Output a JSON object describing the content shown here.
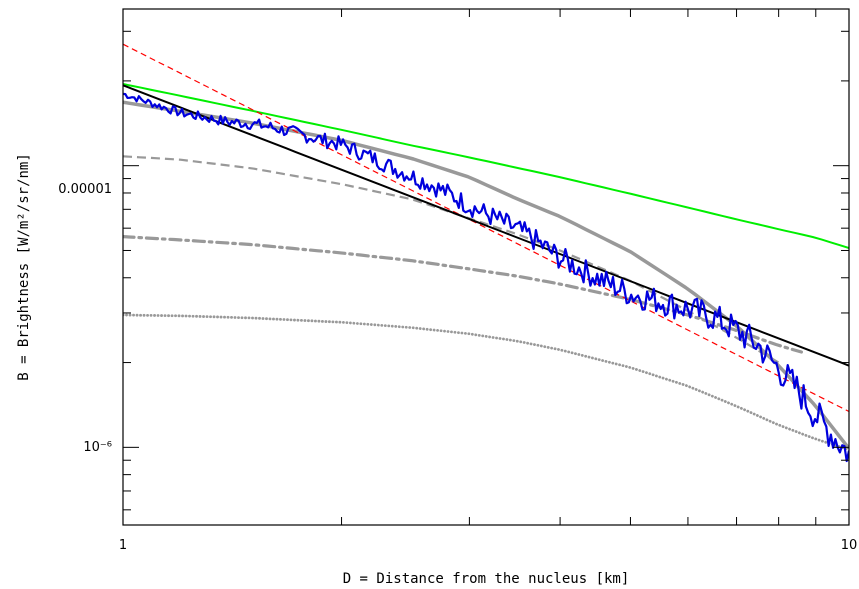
{
  "chart_data": {
    "type": "line",
    "title": "",
    "xlabel": "D = Distance from the nucleus [km]",
    "ylabel": "B = Brightness [W/m²/sr/nm]",
    "xscale": "log",
    "yscale": "log",
    "xlim": [
      1,
      10
    ],
    "ylim": [
      5.3e-07,
      3.6e-05
    ],
    "grid": false,
    "x_tick_labels": [
      "1",
      "10"
    ],
    "y_tick_labels": [
      "0.00001",
      "10⁻⁶"
    ],
    "series": [
      {
        "style": "solid",
        "color": "#00ee00",
        "x": [
          1,
          1.2,
          1.5,
          2,
          2.5,
          3,
          4,
          5,
          6,
          7,
          8,
          9,
          10
        ],
        "y": [
          1.95e-05,
          1.77e-05,
          1.57e-05,
          1.34e-05,
          1.18e-05,
          1.07e-05,
          9.1e-06,
          7.95e-06,
          7.1e-06,
          6.45e-06,
          5.95e-06,
          5.55e-06,
          5.1e-06
        ]
      },
      {
        "style": "dashed",
        "color": "#ff0000",
        "x": [
          1,
          10
        ],
        "y": [
          2.7e-05,
          1.34e-06
        ]
      },
      {
        "style": "solid",
        "color": "#000000",
        "x": [
          1,
          10
        ],
        "y": [
          1.93e-05,
          1.95e-06
        ]
      },
      {
        "style": "solid",
        "color": "#0000dd",
        "noisy": true,
        "x": [
          1,
          1.1,
          1.2,
          1.3,
          1.4,
          1.5,
          1.6,
          1.7,
          1.8,
          2,
          2.2,
          2.4,
          2.6,
          2.8,
          3,
          3.3,
          3.6,
          4,
          4.5,
          5,
          5.5,
          6,
          6.5,
          7,
          7.5,
          8,
          8.5,
          9,
          9.5,
          10
        ],
        "y": [
          1.8e-05,
          1.66e-05,
          1.54e-05,
          1.48e-05,
          1.43e-05,
          1.41e-05,
          1.37e-05,
          1.32e-05,
          1.27e-05,
          1.19e-05,
          1.07e-05,
          9.6e-06,
          8.8e-06,
          8e-06,
          7.2e-06,
          6.4e-06,
          5.7e-06,
          4.7e-06,
          4e-06,
          3.5e-06,
          3.3e-06,
          3.1e-06,
          2.9e-06,
          2.6e-06,
          2.3e-06,
          1.9e-06,
          1.6e-06,
          1.3e-06,
          1.1e-06,
          9.5e-07
        ]
      },
      {
        "style": "thick",
        "color": "#999999",
        "x": [
          1,
          1.2,
          1.5,
          2,
          2.5,
          3,
          3.5,
          4,
          5,
          6,
          7,
          8,
          9,
          10
        ],
        "y": [
          1.68e-05,
          1.56e-05,
          1.42e-05,
          1.23e-05,
          1.06e-05,
          9.1e-06,
          7.6e-06,
          6.6e-06,
          4.95e-06,
          3.65e-06,
          2.7e-06,
          1.95e-06,
          1.4e-06,
          9.9e-07
        ]
      },
      {
        "style": "dashed",
        "color": "#999999",
        "x": [
          1,
          1.2,
          1.5,
          2,
          2.5,
          3,
          3.5,
          4,
          5,
          6,
          7,
          8
        ],
        "y": [
          1.08e-05,
          1.05e-05,
          9.8e-06,
          8.6e-06,
          7.6e-06,
          6.5e-06,
          5.7e-06,
          5e-06,
          3.9e-06,
          3.05e-06,
          2.45e-06,
          2e-06
        ]
      },
      {
        "style": "dashdot",
        "color": "#999999",
        "x": [
          1,
          1.2,
          1.5,
          2,
          2.5,
          3,
          3.5,
          4,
          5,
          6,
          7,
          8,
          8.6
        ],
        "y": [
          5.6e-06,
          5.45e-06,
          5.25e-06,
          4.9e-06,
          4.6e-06,
          4.3e-06,
          4.05e-06,
          3.8e-06,
          3.35e-06,
          2.95e-06,
          2.6e-06,
          2.3e-06,
          2.18e-06
        ]
      },
      {
        "style": "dotted",
        "color": "#999999",
        "x": [
          1,
          1.2,
          1.5,
          2,
          2.5,
          3,
          3.5,
          4,
          5,
          6,
          7,
          8,
          9,
          10
        ],
        "y": [
          2.95e-06,
          2.93e-06,
          2.88e-06,
          2.78e-06,
          2.66e-06,
          2.53e-06,
          2.38e-06,
          2.22e-06,
          1.92e-06,
          1.65e-06,
          1.4e-06,
          1.2e-06,
          1.07e-06,
          9.8e-07
        ]
      }
    ]
  }
}
